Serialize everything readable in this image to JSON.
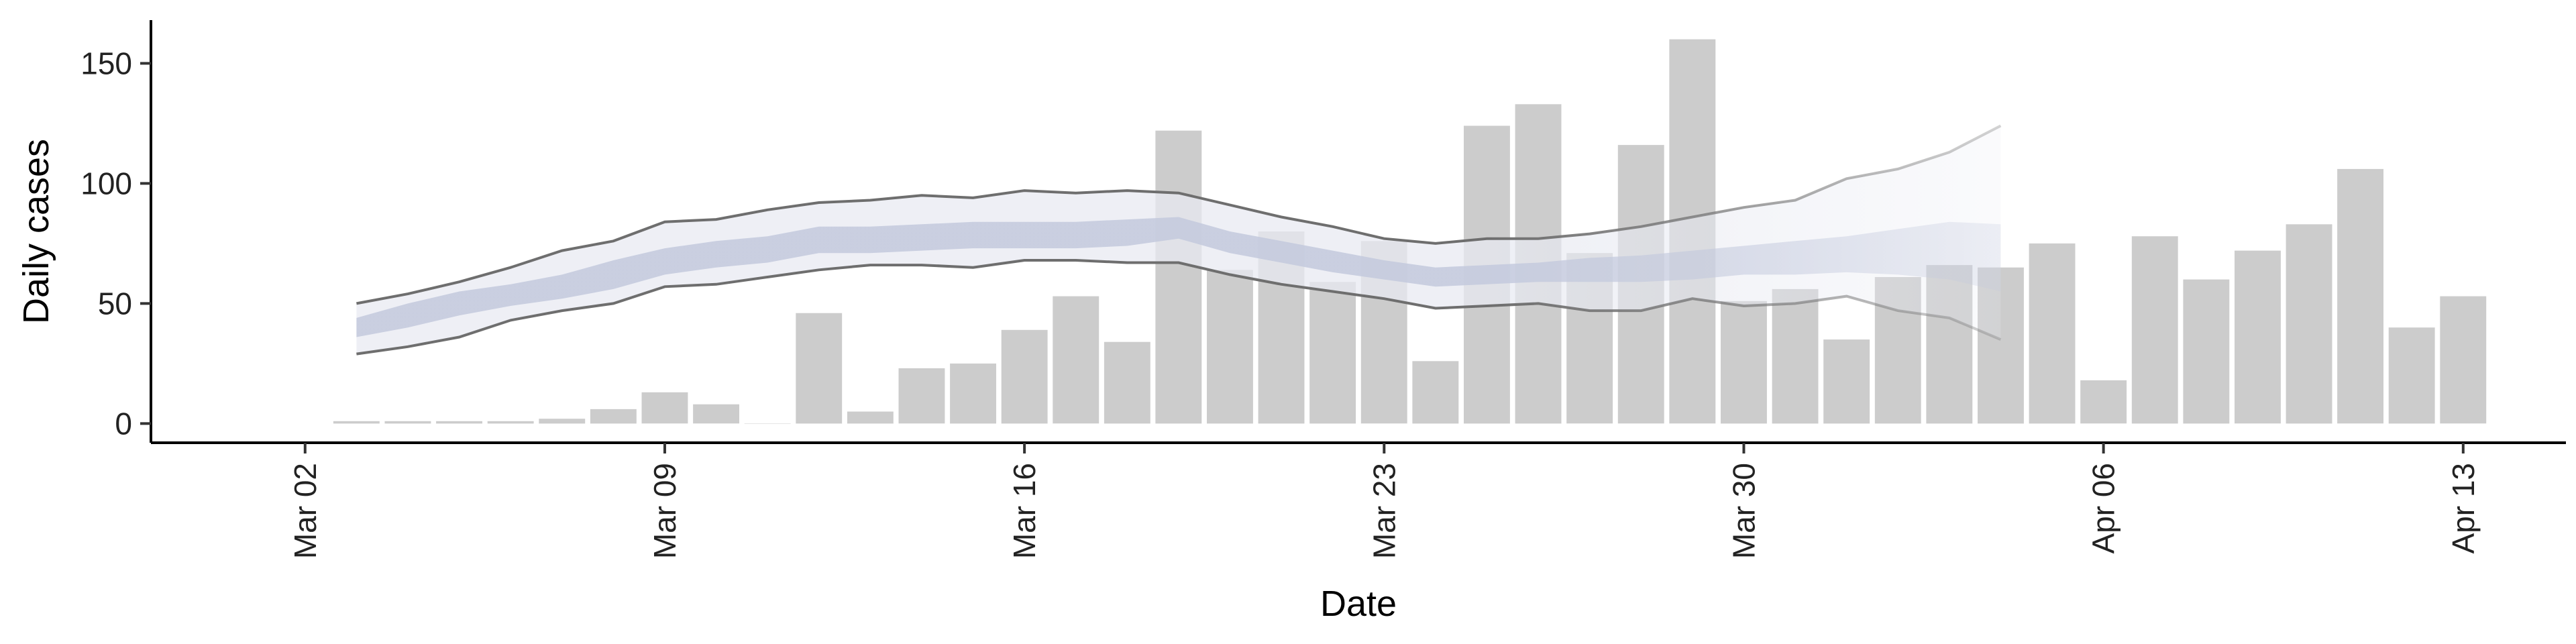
{
  "chart_data": {
    "type": "bar",
    "xlabel": "Date",
    "ylabel": "Daily cases",
    "ylim": [
      -8,
      168
    ],
    "xlim": [
      "2020-02-28",
      "2020-04-15"
    ],
    "y_ticks": [
      0,
      50,
      100,
      150
    ],
    "x_ticks": [
      {
        "date": "2020-03-02",
        "label": "Mar 02"
      },
      {
        "date": "2020-03-09",
        "label": "Mar 09"
      },
      {
        "date": "2020-03-16",
        "label": "Mar 16"
      },
      {
        "date": "2020-03-23",
        "label": "Mar 23"
      },
      {
        "date": "2020-03-30",
        "label": "Mar 30"
      },
      {
        "date": "2020-04-06",
        "label": "Apr 06"
      },
      {
        "date": "2020-04-13",
        "label": "Apr 13"
      }
    ],
    "grid": false,
    "legend": "none",
    "colors": {
      "bar": "#cccccc",
      "band_outer": "#e8eaf2",
      "band_inner": "#c3c9dd",
      "interval_line": "#6e6e6e",
      "axis": "#000000"
    },
    "daily_cases": {
      "dates": [
        "2020-03-03",
        "2020-03-04",
        "2020-03-05",
        "2020-03-06",
        "2020-03-07",
        "2020-03-08",
        "2020-03-09",
        "2020-03-10",
        "2020-03-11",
        "2020-03-12",
        "2020-03-13",
        "2020-03-14",
        "2020-03-15",
        "2020-03-16",
        "2020-03-17",
        "2020-03-18",
        "2020-03-19",
        "2020-03-20",
        "2020-03-21",
        "2020-03-22",
        "2020-03-23",
        "2020-03-24",
        "2020-03-25",
        "2020-03-26",
        "2020-03-27",
        "2020-03-28",
        "2020-03-29",
        "2020-03-30",
        "2020-03-31",
        "2020-04-01",
        "2020-04-02",
        "2020-04-03",
        "2020-04-04",
        "2020-04-05",
        "2020-04-06",
        "2020-04-07",
        "2020-04-08",
        "2020-04-09",
        "2020-04-10",
        "2020-04-11",
        "2020-04-12",
        "2020-04-13"
      ],
      "values": [
        1,
        1,
        1,
        1,
        2,
        6,
        13,
        8,
        0,
        46,
        5,
        23,
        25,
        39,
        53,
        34,
        122,
        64,
        80,
        59,
        76,
        26,
        124,
        133,
        71,
        116,
        160,
        51,
        56,
        35,
        61,
        66,
        65,
        75,
        18,
        78,
        60,
        72,
        83,
        106,
        40,
        53
      ]
    },
    "estimate": {
      "dates": [
        "2020-03-03",
        "2020-03-04",
        "2020-03-05",
        "2020-03-06",
        "2020-03-07",
        "2020-03-08",
        "2020-03-09",
        "2020-03-10",
        "2020-03-11",
        "2020-03-12",
        "2020-03-13",
        "2020-03-14",
        "2020-03-15",
        "2020-03-16",
        "2020-03-17",
        "2020-03-18",
        "2020-03-19",
        "2020-03-20",
        "2020-03-21",
        "2020-03-22",
        "2020-03-23",
        "2020-03-24",
        "2020-03-25",
        "2020-03-26",
        "2020-03-27",
        "2020-03-28",
        "2020-03-29",
        "2020-03-30",
        "2020-03-31",
        "2020-04-01",
        "2020-04-02",
        "2020-04-03",
        "2020-04-04"
      ],
      "outer_upper": [
        50,
        54,
        59,
        65,
        72,
        76,
        84,
        85,
        89,
        92,
        93,
        95,
        94,
        97,
        96,
        97,
        96,
        91,
        86,
        82,
        77,
        75,
        77,
        77,
        79,
        82,
        86,
        90,
        93,
        102,
        106,
        113,
        124
      ],
      "inner_upper": [
        44,
        50,
        55,
        58,
        62,
        68,
        73,
        76,
        78,
        82,
        82,
        83,
        84,
        84,
        84,
        85,
        86,
        80,
        76,
        72,
        68,
        65,
        66,
        67,
        69,
        70,
        72,
        74,
        76,
        78,
        81,
        84,
        83
      ],
      "inner_lower": [
        36,
        40,
        45,
        49,
        52,
        56,
        62,
        65,
        67,
        71,
        71,
        72,
        73,
        73,
        73,
        74,
        77,
        71,
        67,
        63,
        60,
        57,
        58,
        59,
        59,
        59,
        60,
        62,
        62,
        63,
        62,
        60,
        55
      ],
      "outer_lower": [
        29,
        32,
        36,
        43,
        47,
        50,
        57,
        58,
        61,
        64,
        66,
        66,
        65,
        68,
        68,
        67,
        67,
        62,
        58,
        55,
        52,
        48,
        49,
        50,
        47,
        47,
        52,
        49,
        50,
        53,
        47,
        44,
        35
      ]
    }
  }
}
